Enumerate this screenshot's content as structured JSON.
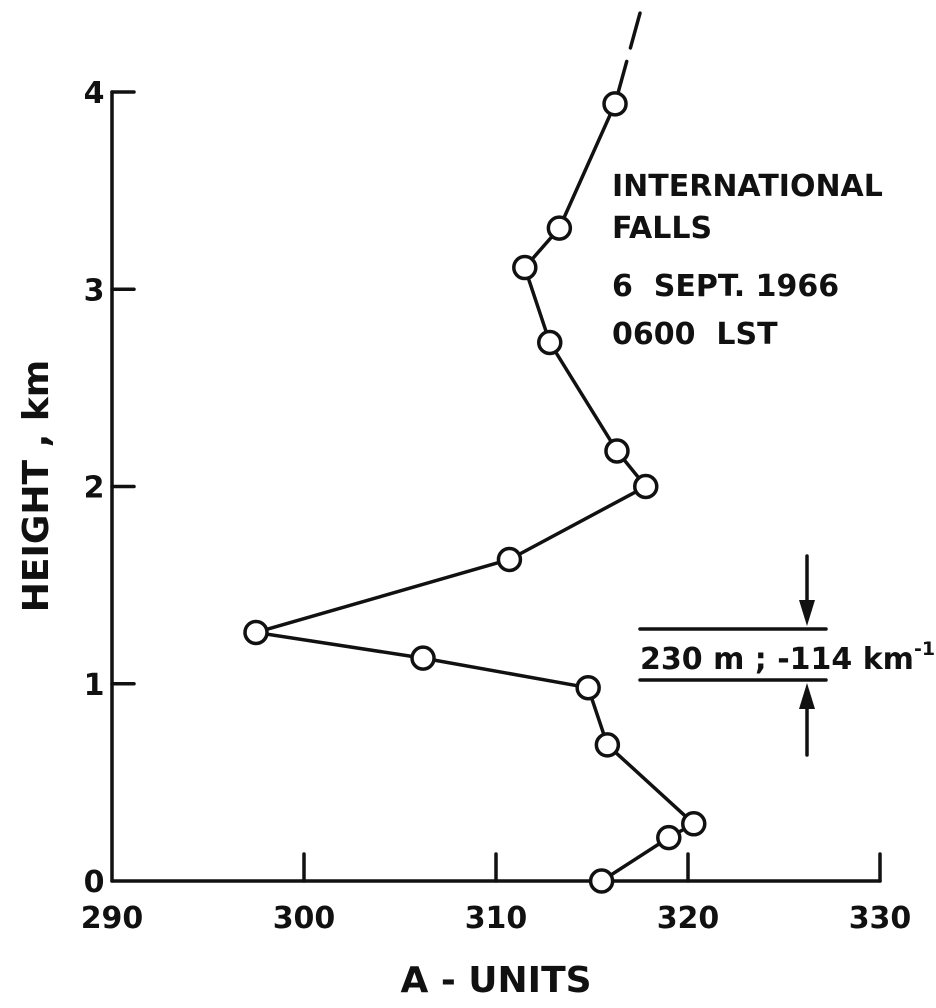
{
  "chart_data": {
    "type": "line",
    "title": "",
    "xlabel": "A - UNITS",
    "ylabel": "HEIGHT , km",
    "xlim": [
      290,
      330
    ],
    "ylim": [
      0,
      4
    ],
    "x_ticks": [
      290,
      300,
      310,
      320,
      330
    ],
    "y_ticks": [
      0,
      1,
      2,
      3,
      4
    ],
    "grid": false,
    "series": [
      {
        "points": [
          {
            "x": 315.5,
            "y": 0.0
          },
          {
            "x": 319.0,
            "y": 0.22
          },
          {
            "x": 320.3,
            "y": 0.29
          },
          {
            "x": 315.8,
            "y": 0.69
          },
          {
            "x": 314.8,
            "y": 0.98
          },
          {
            "x": 306.2,
            "y": 1.13
          },
          {
            "x": 297.5,
            "y": 1.26
          },
          {
            "x": 310.7,
            "y": 1.63
          },
          {
            "x": 317.8,
            "y": 2.0
          },
          {
            "x": 316.3,
            "y": 2.18
          },
          {
            "x": 312.8,
            "y": 2.73
          },
          {
            "x": 311.5,
            "y": 3.11
          },
          {
            "x": 313.3,
            "y": 3.31
          },
          {
            "x": 316.2,
            "y": 3.94
          }
        ],
        "continuation_to": {
          "x": 317.5,
          "y": 4.4
        }
      }
    ],
    "annotations": {
      "station_lines": [
        "INTERNATIONAL",
        "FALLS",
        "6  SEPT. 1966",
        "0600  LST"
      ],
      "layer_label": "230 m ; -114 km",
      "layer_label_sup": "-1"
    }
  },
  "style": {
    "ink": "#111111",
    "background": "#ffffff",
    "marker": "open-circle"
  }
}
